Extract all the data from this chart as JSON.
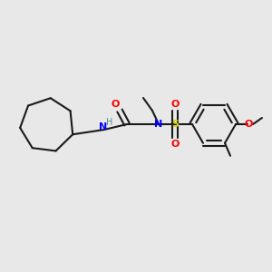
{
  "background_color": "#e8e8e8",
  "bond_color": "#1a1a1a",
  "N_color": "#0000ff",
  "O_color": "#ff0000",
  "S_color": "#cccc00",
  "H_color": "#4a9090",
  "figsize": [
    3.0,
    3.0
  ],
  "dpi": 100,
  "xlim": [
    0,
    300
  ],
  "ylim": [
    0,
    300
  ]
}
